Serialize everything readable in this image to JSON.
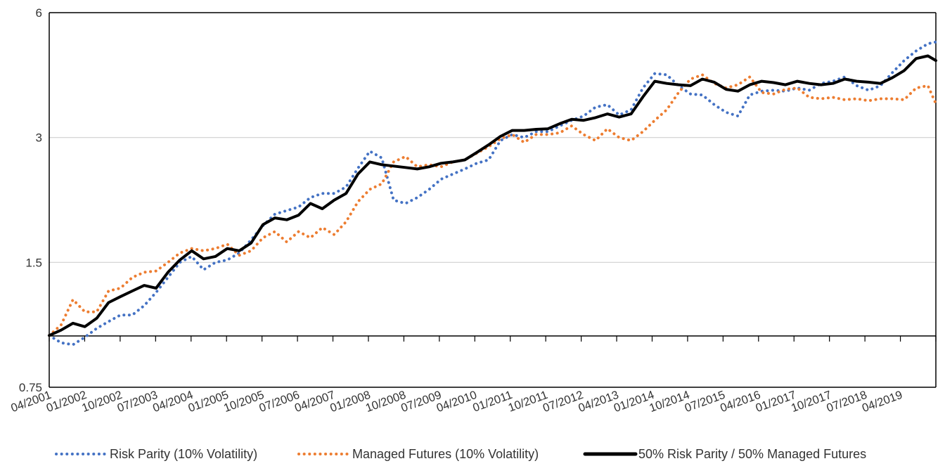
{
  "chart_data": {
    "type": "line",
    "title": "",
    "xlabel": "",
    "ylabel": "",
    "y_scale": "log",
    "ylim": [
      0.75,
      6
    ],
    "y_ticks": [
      {
        "value": 0.75,
        "label": "0.75"
      },
      {
        "value": 1.5,
        "label": "1.5"
      },
      {
        "value": 3,
        "label": "3"
      },
      {
        "value": 6,
        "label": "6"
      }
    ],
    "grid": "horizontal",
    "legend_position": "bottom",
    "x_tick_labels": [
      "04/2001",
      "01/2002",
      "10/2002",
      "07/2003",
      "04/2004",
      "01/2005",
      "10/2005",
      "07/2006",
      "04/2007",
      "01/2008",
      "10/2008",
      "07/2009",
      "04/2010",
      "01/2011",
      "10/2011",
      "07/2012",
      "04/2013",
      "01/2014",
      "10/2014",
      "07/2015",
      "04/2016",
      "01/2017",
      "10/2017",
      "07/2018",
      "04/2019"
    ],
    "x": [
      "04/2001",
      "07/2001",
      "10/2001",
      "01/2002",
      "04/2002",
      "07/2002",
      "10/2002",
      "01/2003",
      "04/2003",
      "07/2003",
      "10/2003",
      "01/2004",
      "04/2004",
      "07/2004",
      "10/2004",
      "01/2005",
      "04/2005",
      "07/2005",
      "10/2005",
      "01/2006",
      "04/2006",
      "07/2006",
      "10/2006",
      "01/2007",
      "04/2007",
      "07/2007",
      "10/2007",
      "01/2008",
      "04/2008",
      "07/2008",
      "10/2008",
      "01/2009",
      "04/2009",
      "07/2009",
      "10/2009",
      "01/2010",
      "04/2010",
      "07/2010",
      "10/2010",
      "01/2011",
      "04/2011",
      "07/2011",
      "10/2011",
      "01/2012",
      "04/2012",
      "07/2012",
      "10/2012",
      "01/2013",
      "04/2013",
      "07/2013",
      "10/2013",
      "01/2014",
      "04/2014",
      "07/2014",
      "10/2014",
      "01/2015",
      "04/2015",
      "07/2015",
      "10/2015",
      "01/2016",
      "04/2016",
      "07/2016",
      "10/2016",
      "01/2017",
      "04/2017",
      "07/2017",
      "10/2017",
      "01/2018",
      "04/2018",
      "07/2018",
      "10/2018",
      "01/2019",
      "04/2019",
      "07/2019",
      "10/2019",
      "12/2019"
    ],
    "series": [
      {
        "name": "Risk Parity (10% Volatility)",
        "color": "#4472c4",
        "style": "dotted",
        "values": [
          1.0,
          0.96,
          0.95,
          0.99,
          1.04,
          1.08,
          1.12,
          1.12,
          1.18,
          1.27,
          1.38,
          1.5,
          1.55,
          1.44,
          1.5,
          1.52,
          1.58,
          1.7,
          1.84,
          1.96,
          2.0,
          2.04,
          2.15,
          2.2,
          2.2,
          2.28,
          2.53,
          2.78,
          2.68,
          2.12,
          2.08,
          2.15,
          2.25,
          2.38,
          2.45,
          2.52,
          2.6,
          2.65,
          2.95,
          3.05,
          3.0,
          3.1,
          3.1,
          3.2,
          3.3,
          3.38,
          3.55,
          3.6,
          3.4,
          3.5,
          3.95,
          4.28,
          4.25,
          4.0,
          3.82,
          3.8,
          3.6,
          3.45,
          3.38,
          3.8,
          3.88,
          3.9,
          3.88,
          3.95,
          3.9,
          4.05,
          4.1,
          4.2,
          4.0,
          3.9,
          4.0,
          4.3,
          4.6,
          4.85,
          5.05,
          5.1
        ]
      },
      {
        "name": "Managed Futures (10% Volatility)",
        "color": "#ed7d31",
        "style": "dotted",
        "values": [
          1.0,
          1.06,
          1.22,
          1.14,
          1.14,
          1.28,
          1.3,
          1.38,
          1.42,
          1.43,
          1.5,
          1.58,
          1.62,
          1.6,
          1.62,
          1.66,
          1.56,
          1.6,
          1.72,
          1.78,
          1.68,
          1.78,
          1.72,
          1.82,
          1.75,
          1.88,
          2.1,
          2.25,
          2.32,
          2.62,
          2.7,
          2.55,
          2.58,
          2.55,
          2.62,
          2.65,
          2.75,
          2.85,
          2.98,
          3.05,
          2.92,
          3.05,
          3.05,
          3.08,
          3.2,
          3.05,
          2.95,
          3.15,
          3.0,
          2.95,
          3.1,
          3.3,
          3.5,
          3.85,
          4.15,
          4.25,
          4.05,
          3.95,
          4.02,
          4.2,
          3.85,
          3.82,
          3.92,
          3.95,
          3.75,
          3.72,
          3.75,
          3.7,
          3.72,
          3.68,
          3.72,
          3.72,
          3.7,
          3.95,
          4.0,
          3.62
        ]
      },
      {
        "name": "50% Risk Parity / 50% Managed Futures",
        "color": "#000000",
        "style": "solid",
        "values": [
          1.0,
          1.03,
          1.07,
          1.05,
          1.1,
          1.2,
          1.24,
          1.28,
          1.32,
          1.3,
          1.42,
          1.52,
          1.6,
          1.53,
          1.55,
          1.62,
          1.6,
          1.67,
          1.85,
          1.92,
          1.9,
          1.95,
          2.08,
          2.02,
          2.12,
          2.2,
          2.45,
          2.62,
          2.58,
          2.56,
          2.54,
          2.52,
          2.55,
          2.6,
          2.62,
          2.65,
          2.76,
          2.88,
          3.02,
          3.12,
          3.12,
          3.14,
          3.15,
          3.24,
          3.32,
          3.3,
          3.35,
          3.42,
          3.36,
          3.42,
          3.76,
          4.1,
          4.05,
          4.02,
          4.0,
          4.15,
          4.08,
          3.92,
          3.88,
          4.02,
          4.1,
          4.07,
          4.02,
          4.1,
          4.05,
          4.02,
          4.05,
          4.15,
          4.1,
          4.08,
          4.05,
          4.18,
          4.35,
          4.65,
          4.72,
          4.6
        ]
      }
    ]
  }
}
